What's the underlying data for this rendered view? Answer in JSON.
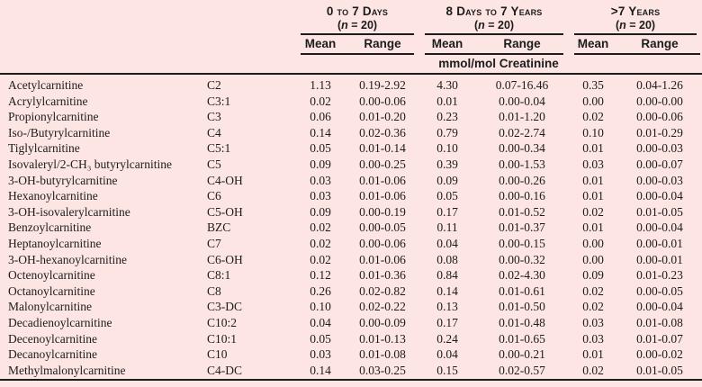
{
  "table": {
    "unit_label": "mmol/mol Creatinine",
    "n_label": {
      "open": "(",
      "var": "n",
      "rest": " = 20)"
    },
    "col_headers": {
      "mean": "Mean",
      "range": "Range"
    },
    "groups": [
      {
        "title": "0 to 7 Days"
      },
      {
        "title": "8 Days to 7 Years"
      },
      {
        "title": ">7 Years"
      }
    ],
    "rows": [
      {
        "name": "Acetylcarnitine",
        "code": "C2",
        "m1": "1.13",
        "r1": "0.19-2.92",
        "m2": "4.30",
        "r2": "0.07-16.46",
        "m3": "0.35",
        "r3": "0.04-1.26"
      },
      {
        "name": "Acrylylcarnitine",
        "code": "C3:1",
        "m1": "0.02",
        "r1": "0.00-0.06",
        "m2": "0.01",
        "r2": "0.00-0.04",
        "m3": "0.00",
        "r3": "0.00-0.00"
      },
      {
        "name": "Propionylcarnitine",
        "code": "C3",
        "m1": "0.06",
        "r1": "0.01-0.20",
        "m2": "0.23",
        "r2": "0.01-1.20",
        "m3": "0.02",
        "r3": "0.00-0.06"
      },
      {
        "name": "Iso-/Butyrylcarnitine",
        "code": "C4",
        "m1": "0.14",
        "r1": "0.02-0.36",
        "m2": "0.79",
        "r2": "0.02-2.74",
        "m3": "0.10",
        "r3": "0.01-0.29"
      },
      {
        "name": "Tiglylcarnitine",
        "code": "C5:1",
        "m1": "0.05",
        "r1": "0.01-0.14",
        "m2": "0.10",
        "r2": "0.00-0.34",
        "m3": "0.01",
        "r3": "0.00-0.03"
      },
      {
        "name": "Isovaleryl/2-CH₃ butyrylcarnitine",
        "code": "C5",
        "m1": "0.09",
        "r1": "0.00-0.25",
        "m2": "0.39",
        "r2": "0.00-1.53",
        "m3": "0.03",
        "r3": "0.00-0.07"
      },
      {
        "name": "3-OH-butyrylcarnitine",
        "code": "C4-OH",
        "m1": "0.03",
        "r1": "0.01-0.06",
        "m2": "0.09",
        "r2": "0.00-0.26",
        "m3": "0.01",
        "r3": "0.00-0.03"
      },
      {
        "name": "Hexanoylcarnitine",
        "code": "C6",
        "m1": "0.03",
        "r1": "0.01-0.06",
        "m2": "0.05",
        "r2": "0.00-0.16",
        "m3": "0.01",
        "r3": "0.00-0.04"
      },
      {
        "name": "3-OH-isovalerylcarnitine",
        "code": "C5-OH",
        "m1": "0.09",
        "r1": "0.00-0.19",
        "m2": "0.17",
        "r2": "0.01-0.52",
        "m3": "0.02",
        "r3": "0.01-0.05"
      },
      {
        "name": "Benzoylcarnitine",
        "code": "BZC",
        "m1": "0.02",
        "r1": "0.00-0.05",
        "m2": "0.11",
        "r2": "0.01-0.37",
        "m3": "0.01",
        "r3": "0.00-0.04"
      },
      {
        "name": "Heptanoylcarnitine",
        "code": "C7",
        "m1": "0.02",
        "r1": "0.00-0.06",
        "m2": "0.04",
        "r2": "0.00-0.15",
        "m3": "0.00",
        "r3": "0.00-0.01"
      },
      {
        "name": "3-OH-hexanoylcarnitine",
        "code": "C6-OH",
        "m1": "0.02",
        "r1": "0.01-0.06",
        "m2": "0.08",
        "r2": "0.00-0.32",
        "m3": "0.00",
        "r3": "0.00-0.01"
      },
      {
        "name": "Octenoylcarnitine",
        "code": "C8:1",
        "m1": "0.12",
        "r1": "0.01-0.36",
        "m2": "0.84",
        "r2": "0.02-4.30",
        "m3": "0.09",
        "r3": "0.01-0.23"
      },
      {
        "name": "Octanoylcarnitine",
        "code": "C8",
        "m1": "0.26",
        "r1": "0.02-0.82",
        "m2": "0.14",
        "r2": "0.01-0.61",
        "m3": "0.02",
        "r3": "0.00-0.05"
      },
      {
        "name": "Malonylcarnitine",
        "code": "C3-DC",
        "m1": "0.10",
        "r1": "0.02-0.22",
        "m2": "0.13",
        "r2": "0.01-0.50",
        "m3": "0.02",
        "r3": "0.00-0.04"
      },
      {
        "name": "Decadienoylcarnitine",
        "code": "C10:2",
        "m1": "0.04",
        "r1": "0.00-0.09",
        "m2": "0.17",
        "r2": "0.01-0.48",
        "m3": "0.03",
        "r3": "0.01-0.08"
      },
      {
        "name": "Decenoylcarnitine",
        "code": "C10:1",
        "m1": "0.05",
        "r1": "0.01-0.13",
        "m2": "0.24",
        "r2": "0.01-0.65",
        "m3": "0.03",
        "r3": "0.01-0.07"
      },
      {
        "name": "Decanoylcarnitine",
        "code": "C10",
        "m1": "0.03",
        "r1": "0.01-0.08",
        "m2": "0.04",
        "r2": "0.00-0.21",
        "m3": "0.01",
        "r3": "0.00-0.02"
      },
      {
        "name": "Methylmalonylcarnitine",
        "code": "C4-DC",
        "m1": "0.14",
        "r1": "0.03-0.25",
        "m2": "0.15",
        "r2": "0.02-0.57",
        "m3": "0.02",
        "r3": "0.01-0.05"
      }
    ]
  }
}
